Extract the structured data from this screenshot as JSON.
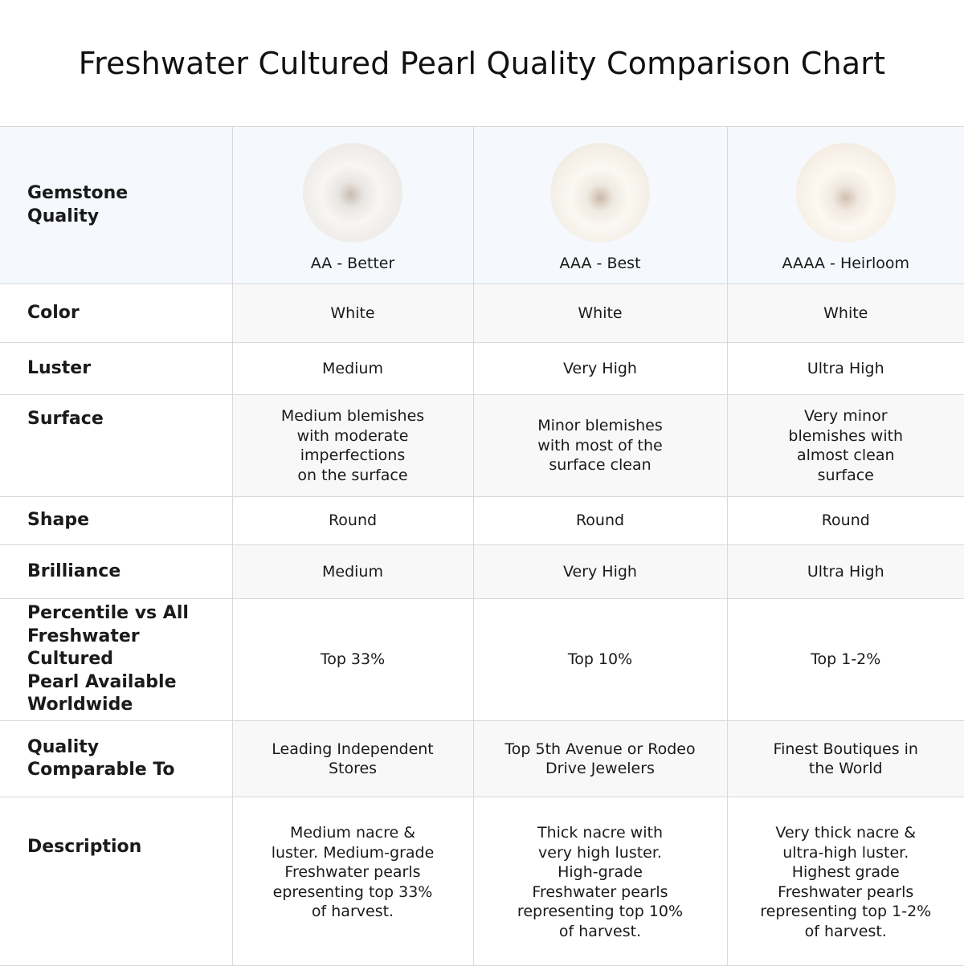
{
  "title": "Freshwater Cultured Pearl Quality Comparison Chart",
  "header": {
    "label": "Gemstone\nQuality",
    "grades": [
      "AA - Better",
      "AAA - Best",
      "AAAA - Heirloom"
    ],
    "pearl_images": [
      "white-round-pearl",
      "white-round-pearl",
      "white-round-pearl"
    ]
  },
  "rows": [
    {
      "label": "Color",
      "values": [
        "White",
        "White",
        "White"
      ]
    },
    {
      "label": "Luster",
      "values": [
        "Medium",
        "Very High",
        "Ultra High"
      ]
    },
    {
      "label": "Surface",
      "values": [
        "Medium blemishes\nwith moderate\nimperfections\non the surface",
        "Minor blemishes\nwith most of the\nsurface clean",
        "Very minor\nblemishes with\nalmost clean\nsurface"
      ]
    },
    {
      "label": "Shape",
      "values": [
        "Round",
        "Round",
        "Round"
      ]
    },
    {
      "label": "Brilliance",
      "values": [
        "Medium",
        "Very High",
        "Ultra High"
      ]
    },
    {
      "label": "Percentile vs All\nFreshwater Cultured\nPearl Available\nWorldwide",
      "values": [
        "Top 33%",
        "Top 10%",
        "Top 1-2%"
      ]
    },
    {
      "label": "Quality\nComparable To",
      "values": [
        "Leading Independent\nStores",
        "Top 5th Avenue or Rodeo\nDrive Jewelers",
        "Finest Boutiques in\nthe World"
      ]
    },
    {
      "label": "Description",
      "values": [
        "Medium nacre &\nluster. Medium-grade\nFreshwater pearls\nepresenting top 33%\nof harvest.",
        "Thick nacre with\nvery high luster.\nHigh-grade\nFreshwater pearls\nrepresenting top 10%\nof harvest.",
        "Very thick nacre &\nultra-high luster.\nHighest grade\nFreshwater pearls\nrepresenting top 1-2%\nof harvest."
      ]
    }
  ]
}
